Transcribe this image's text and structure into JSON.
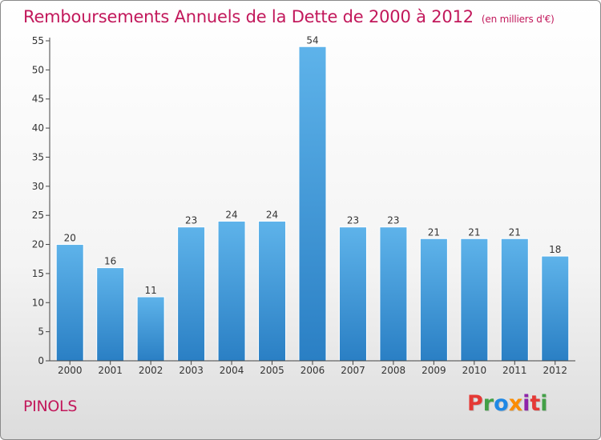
{
  "header": {
    "title": "Remboursements Annuels de la Dette de 2000 à 2012",
    "unit": "(en milliers d'€)"
  },
  "footer": {
    "town": "PINOLS",
    "logo_letters": [
      {
        "ch": "P",
        "color": "#e53935"
      },
      {
        "ch": "r",
        "color": "#43a047"
      },
      {
        "ch": "o",
        "color": "#1e88e5"
      },
      {
        "ch": "x",
        "color": "#fb8c00"
      },
      {
        "ch": "i",
        "color": "#8e24aa"
      },
      {
        "ch": "t",
        "color": "#e53935"
      },
      {
        "ch": "i",
        "color": "#43a047"
      }
    ]
  },
  "colors": {
    "bar_top": "#5eb3ea",
    "bar_bottom": "#2a7fc4",
    "accent": "#c2185b",
    "axis": "#444444"
  },
  "chart_data": {
    "type": "bar",
    "title": "Remboursements Annuels de la Dette de 2000 à 2012",
    "subtitle": "(en milliers d'€)",
    "categories": [
      "2000",
      "2001",
      "2002",
      "2003",
      "2004",
      "2005",
      "2006",
      "2007",
      "2008",
      "2009",
      "2010",
      "2011",
      "2012"
    ],
    "values": [
      20,
      16,
      11,
      23,
      24,
      24,
      54,
      23,
      23,
      21,
      21,
      21,
      18
    ],
    "ylim": [
      0,
      55
    ],
    "yticks": [
      0,
      5,
      10,
      15,
      20,
      25,
      30,
      35,
      40,
      45,
      50,
      55
    ],
    "xlabel": "",
    "ylabel": "",
    "grid": false,
    "legend": "none"
  }
}
